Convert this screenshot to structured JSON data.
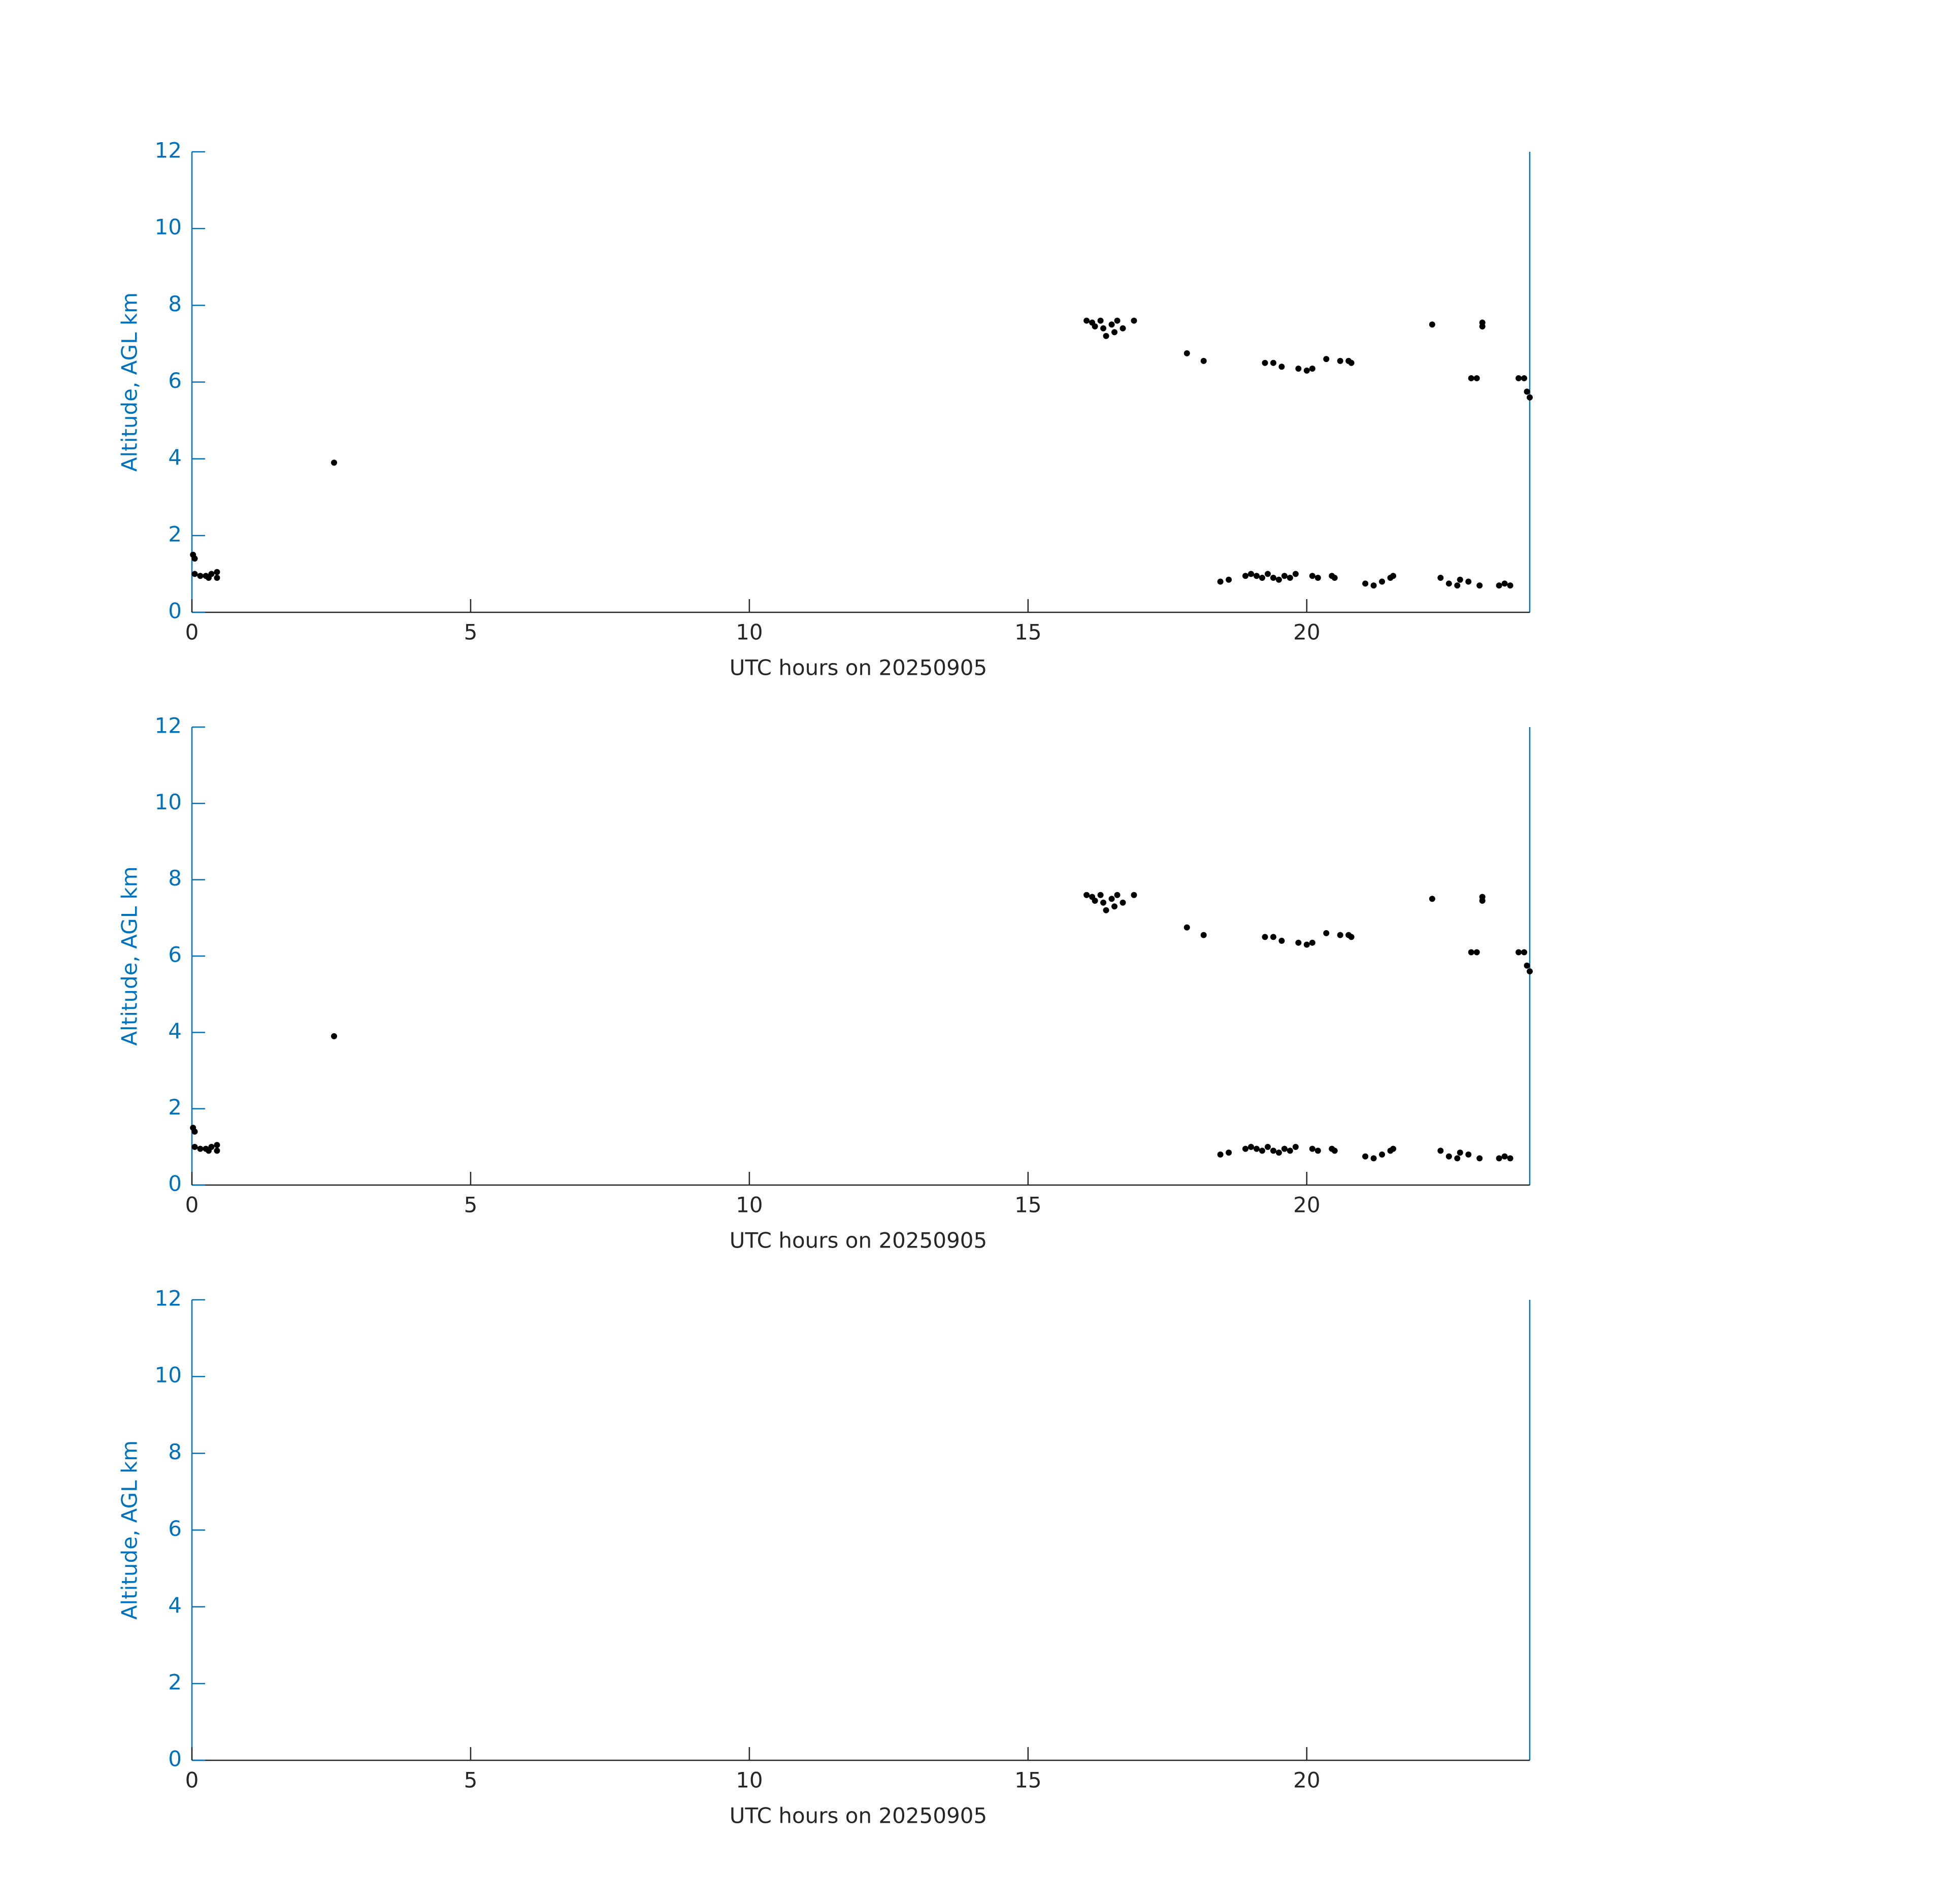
{
  "chart_data": [
    {
      "type": "scatter",
      "x_label": "UTC hours on 20250905",
      "y_label": "Altitude, AGL km",
      "color": "#000000",
      "xlim": [
        0,
        24
      ],
      "xticks": [
        0,
        5,
        10,
        15,
        20
      ],
      "ylim": [
        0,
        12
      ],
      "yticks": [
        0,
        2,
        4,
        6,
        8,
        10,
        12
      ],
      "x": [
        0.02,
        0.05,
        0.05,
        0.15,
        0.25,
        0.3,
        0.35,
        0.45,
        0.45,
        2.55,
        16.05,
        16.15,
        16.2,
        16.3,
        16.35,
        16.4,
        16.5,
        16.55,
        16.6,
        16.7,
        16.9,
        17.85,
        18.15,
        18.45,
        18.6,
        18.9,
        19.0,
        19.1,
        19.2,
        19.3,
        19.4,
        19.5,
        19.6,
        19.7,
        19.8,
        20.1,
        20.2,
        20.45,
        20.5,
        19.25,
        19.4,
        19.55,
        19.85,
        20.0,
        20.1,
        20.35,
        20.6,
        20.75,
        20.8,
        21.05,
        21.2,
        21.35,
        21.5,
        21.55,
        22.25,
        22.4,
        22.55,
        22.7,
        22.75,
        22.9,
        23.1,
        23.45,
        23.55,
        23.65,
        22.95,
        23.05,
        23.15,
        23.15,
        23.8,
        23.9,
        23.95,
        24.0
      ],
      "values": [
        1.5,
        1.4,
        1.0,
        0.95,
        0.95,
        0.9,
        1.0,
        0.9,
        1.05,
        3.9,
        7.6,
        7.55,
        7.45,
        7.6,
        7.4,
        7.2,
        7.5,
        7.3,
        7.6,
        7.4,
        7.6,
        6.75,
        6.55,
        0.8,
        0.85,
        0.95,
        1.0,
        0.95,
        0.9,
        1.0,
        0.9,
        0.85,
        0.95,
        0.9,
        1.0,
        0.95,
        0.9,
        0.95,
        0.9,
        6.5,
        6.5,
        6.4,
        6.35,
        6.3,
        6.35,
        6.6,
        6.55,
        6.55,
        6.5,
        0.75,
        0.7,
        0.8,
        0.9,
        0.95,
        7.5,
        0.9,
        0.75,
        0.7,
        0.85,
        0.8,
        0.7,
        0.7,
        0.75,
        0.7,
        6.1,
        6.1,
        7.55,
        7.45,
        6.1,
        6.1,
        5.75,
        5.6
      ]
    },
    {
      "type": "scatter",
      "x_label": "UTC hours on 20250905",
      "y_label": "Altitude, AGL km",
      "color": "#000000",
      "xlim": [
        0,
        24
      ],
      "xticks": [
        0,
        5,
        10,
        15,
        20
      ],
      "ylim": [
        0,
        12
      ],
      "yticks": [
        0,
        2,
        4,
        6,
        8,
        10,
        12
      ],
      "x": [
        0.02,
        0.05,
        0.05,
        0.15,
        0.25,
        0.3,
        0.35,
        0.45,
        0.45,
        2.55,
        16.05,
        16.15,
        16.2,
        16.3,
        16.35,
        16.4,
        16.5,
        16.55,
        16.6,
        16.7,
        16.9,
        17.85,
        18.15,
        18.45,
        18.6,
        18.9,
        19.0,
        19.1,
        19.2,
        19.3,
        19.4,
        19.5,
        19.6,
        19.7,
        19.8,
        20.1,
        20.2,
        20.45,
        20.5,
        19.25,
        19.4,
        19.55,
        19.85,
        20.0,
        20.1,
        20.35,
        20.6,
        20.75,
        20.8,
        21.05,
        21.2,
        21.35,
        21.5,
        21.55,
        22.25,
        22.4,
        22.55,
        22.7,
        22.75,
        22.9,
        23.1,
        23.45,
        23.55,
        23.65,
        22.95,
        23.05,
        23.15,
        23.15,
        23.8,
        23.9,
        23.95,
        24.0
      ],
      "values": [
        1.5,
        1.4,
        1.0,
        0.95,
        0.95,
        0.9,
        1.0,
        0.9,
        1.05,
        3.9,
        7.6,
        7.55,
        7.45,
        7.6,
        7.4,
        7.2,
        7.5,
        7.3,
        7.6,
        7.4,
        7.6,
        6.75,
        6.55,
        0.8,
        0.85,
        0.95,
        1.0,
        0.95,
        0.9,
        1.0,
        0.9,
        0.85,
        0.95,
        0.9,
        1.0,
        0.95,
        0.9,
        0.95,
        0.9,
        6.5,
        6.5,
        6.4,
        6.35,
        6.3,
        6.35,
        6.6,
        6.55,
        6.55,
        6.5,
        0.75,
        0.7,
        0.8,
        0.9,
        0.95,
        7.5,
        0.9,
        0.75,
        0.7,
        0.85,
        0.8,
        0.7,
        0.7,
        0.75,
        0.7,
        6.1,
        6.1,
        7.55,
        7.45,
        6.1,
        6.1,
        5.75,
        5.6
      ]
    },
    {
      "type": "scatter",
      "x_label": "UTC hours on 20250905",
      "y_label": "Altitude, AGL km",
      "color": "#000000",
      "xlim": [
        0,
        24
      ],
      "xticks": [
        0,
        5,
        10,
        15,
        20
      ],
      "ylim": [
        0,
        12
      ],
      "yticks": [
        0,
        2,
        4,
        6,
        8,
        10,
        12
      ],
      "x": [],
      "values": []
    }
  ]
}
